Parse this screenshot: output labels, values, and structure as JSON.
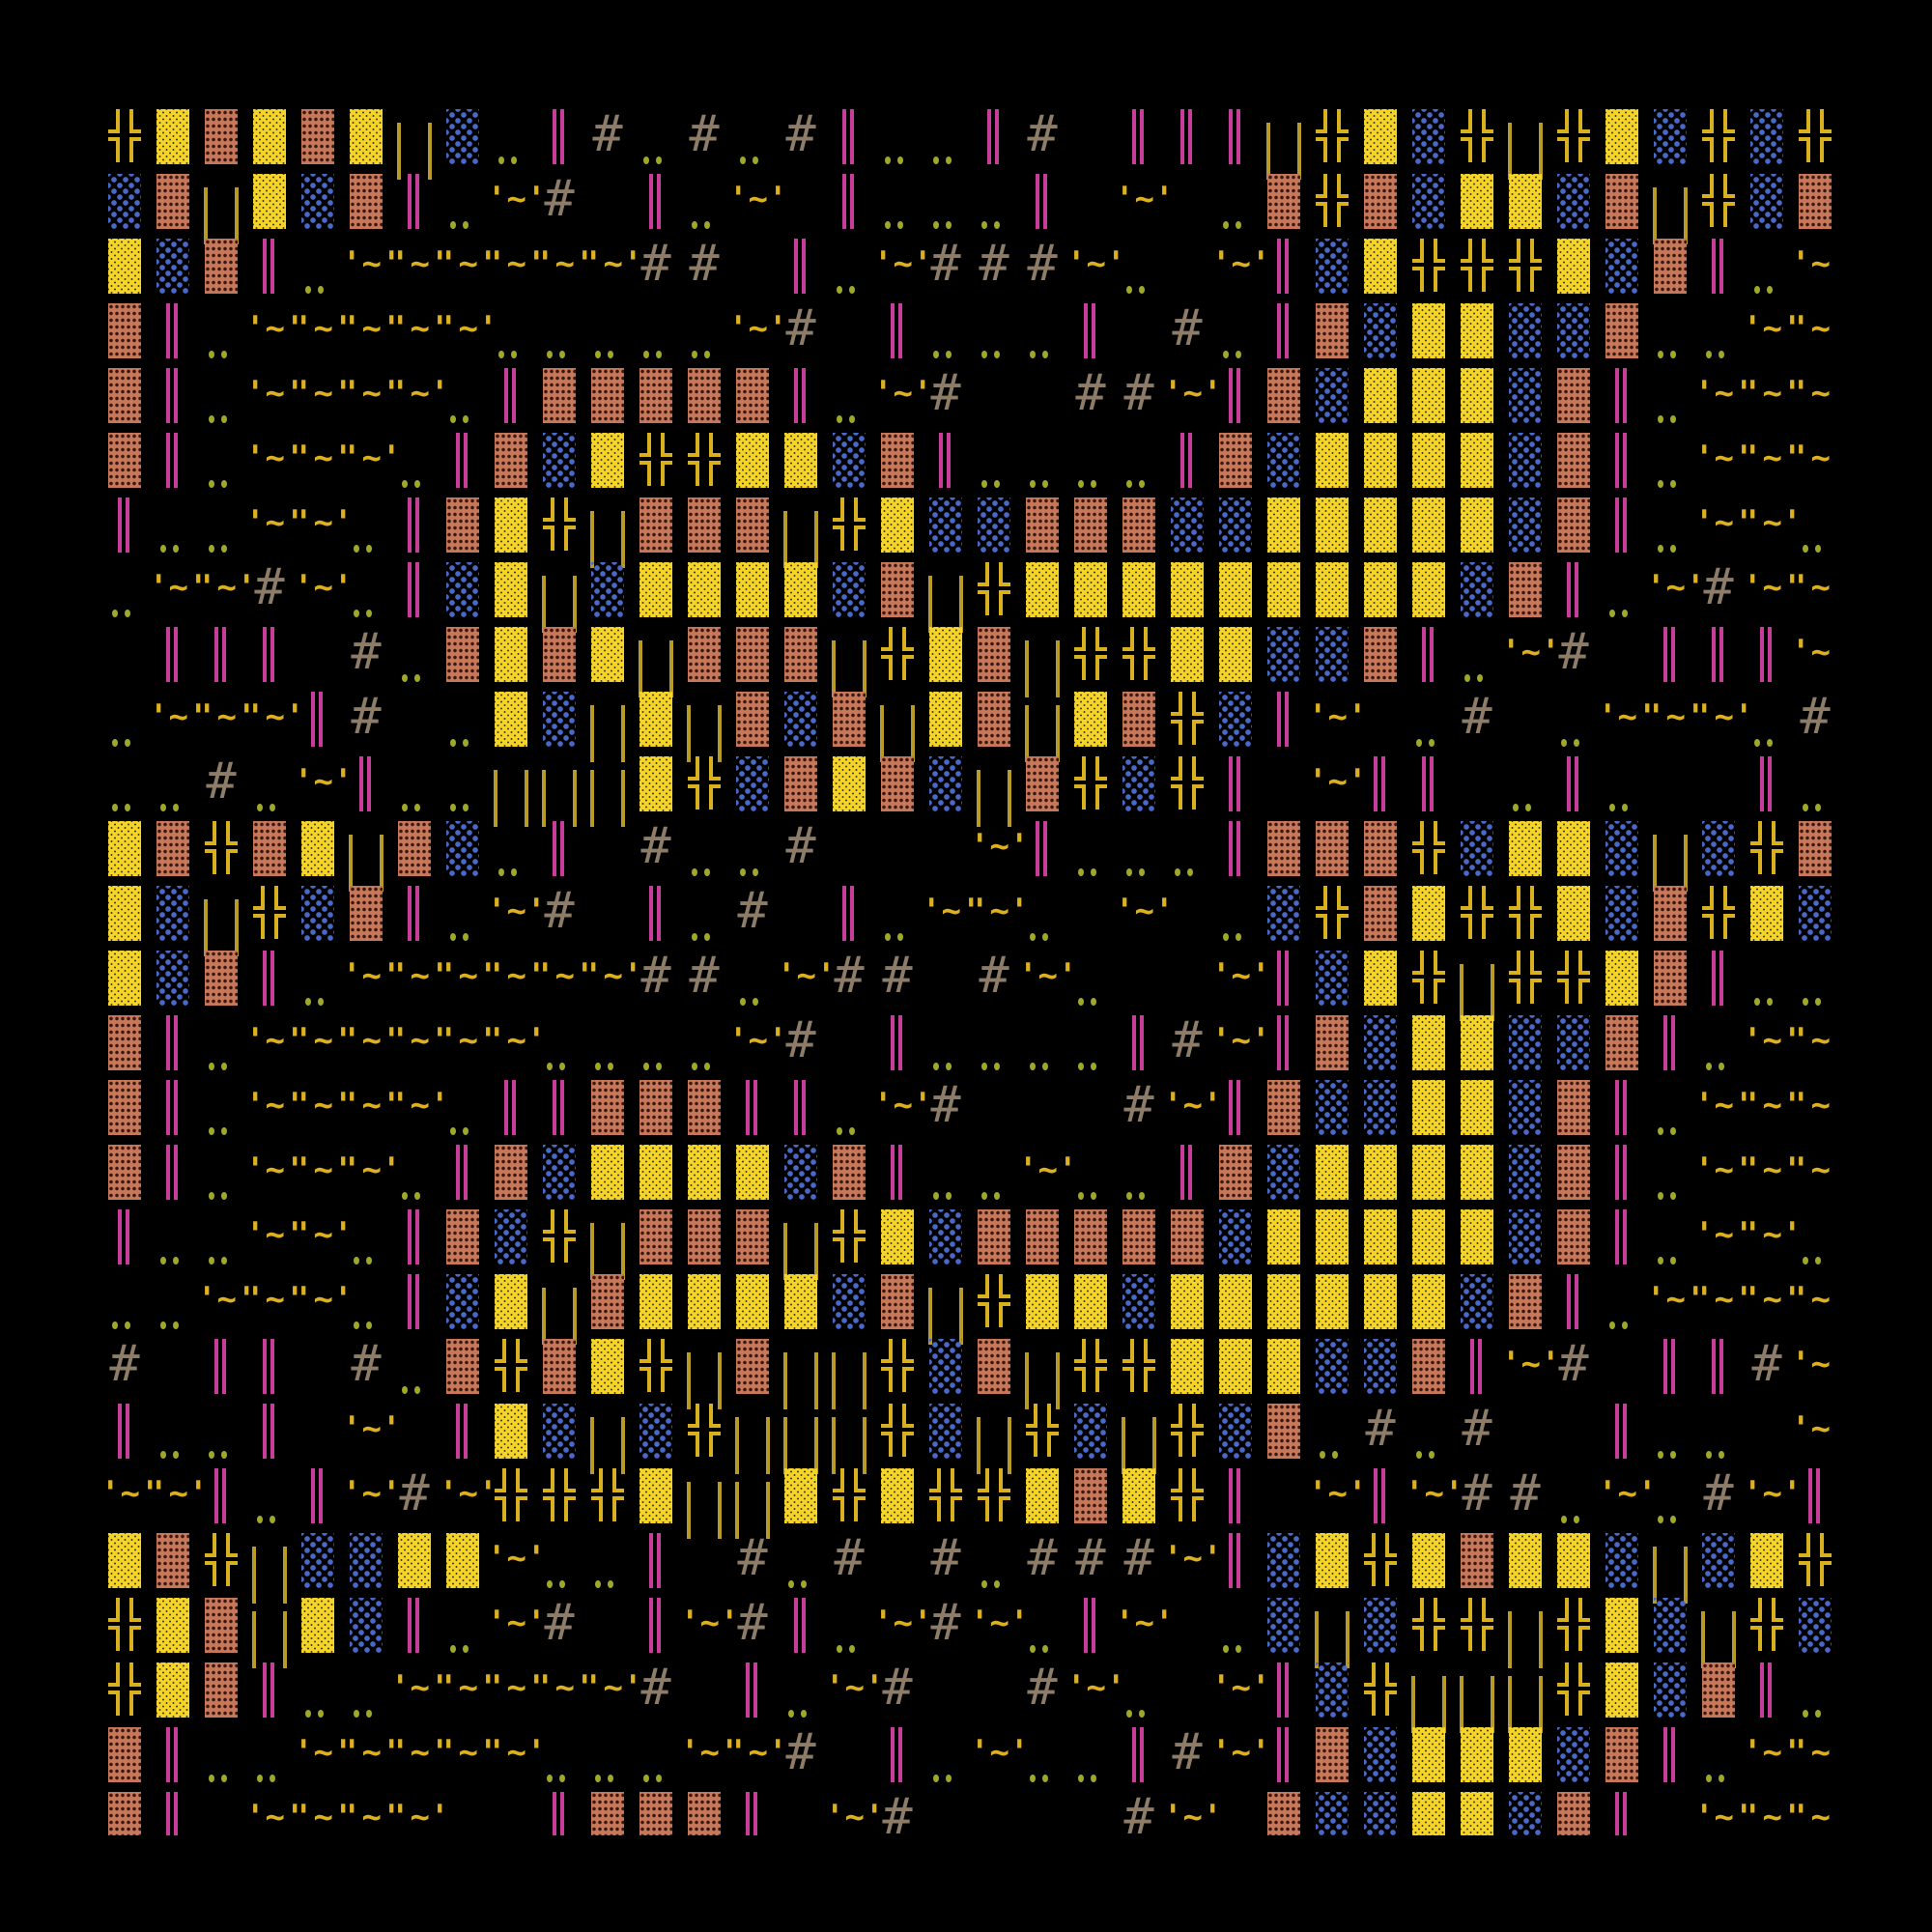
{
  "glyphs": {
    "H": {
      "name": "double-cross",
      "char": "╬",
      "color": "#d8b020"
    },
    "Y": {
      "name": "yellow-dot-shade",
      "char": "░",
      "color": "#f5d42a"
    },
    "B": {
      "name": "brick-shade",
      "char": "▓",
      "color": "#c8785a"
    },
    "b": {
      "name": "blue-dot-shade",
      "char": "░",
      "color": "#4a68c8"
    },
    "M": {
      "name": "double-bar",
      "char": "║",
      "color": "#c83c9a"
    },
    "U": {
      "name": "olive-bars",
      "char": "| |",
      "color": "#b89a28"
    },
    "#": {
      "name": "hash",
      "char": "#",
      "color": "#8c7c68"
    },
    ".": {
      "name": "dots",
      "char": "..",
      "color": "#a0a828"
    },
    "~": {
      "name": "tilde",
      "char": "'~'",
      "color": "#dcb020"
    },
    "_": {
      "name": "blank",
      "char": " ",
      "color": "#000000"
    }
  },
  "background": "#000000",
  "rows": [
    "HYBYBYUb.M#.#.#M..M#_MMMUHYbHUHYbHbH",
    "bBUYbBM.~#_M.~_M...M_~_.BHBbYYbBUHbB",
    "YbBM.~~~~~~##_M.~###~._~MbYHHHYbBM.~",
    "BM.~~~~~.....~#_M...M_#.MBbYYbbB..~~",
    "BM.~~~~.MBBBBBM.~#__##~MBbYYYbBM.~~~",
    "BM.~~~.MBbYHHYYbBM....MBbYYYYbBM.~~~",
    "M..~~.MBYHUBBBUHYbbBBBbbYYYYYbBM.~~.",
    ".~~#~.MbYUbYYYYbBUHYYYYYYYYYbBM.~#~~",
    "_MMM_#.BYBYUBBBUHYBUHHYYbbBM.~#_MMM~",
    ".~~~M#_.YbUYUBbBUYBUYBHbM~_.#_.~~~.#",
    "..#.~M..UUUYHbBYBbUBHbHM_~MM_.M.__M.",
    "YBHBYUBb.M_#..#___~M...MBBBHbYYbUbHB",
    "YbUHbBM.~#_M.#_M.~~._~_.bHBYHHYbBHYb",
    "YbBM.~~~~~~##.~##_#~.__~MbYHUHHYBM..",
    "BM.~~~~~~....~#_M....M#~MBbYYbbBM.~~",
    "BM.~~~~.MMBBBMM.~#___#~MBbbYYbBM.~~~",
    "BM.~~~.MBbYYYYbBM..~..MBbYYYYbBM.~~~",
    "M..~~.MBbHUBBBUHYbBBBBBbYYYYYbBM.~~.",
    "..~~~.MbYUBYYYYbBUHYYbYYYYYYbBM.~~~~",
    "#_MM_#.BHBYHUBUUHbBUHHYYYbbBM~#_MM#~",
    "M..M_~_MYbUbHUUUHbUHbUHbB.#.#__M.._~",
    "~~M.M~#~HHHYUUYHYHHYBYHM_~M~##.~.#~M",
    "YBHUbbYY~..M_#.#_#.###~MbYHYBYYbUbYH",
    "HYBUYbM.~#_M~#M.~#~.M~_.bUbHHUHYbUHb",
    "HYBM..~~~~~#_M.~#__#~._~MbHUUUHYbBM.",
    "BM..~~~~~...~~#_M.~..M#~MBbYYYbBM.~~",
    "BM_~~~~__MBBBM_~#____#~_BbbYYbBM_~~~"
  ]
}
